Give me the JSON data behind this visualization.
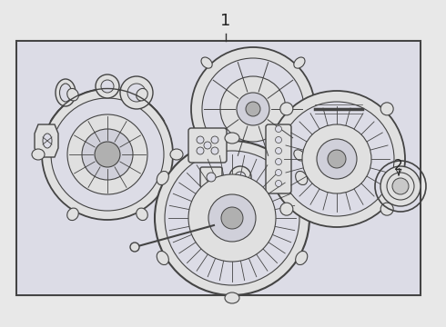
{
  "background_color": "#e8e8e8",
  "inner_bg": "#d8d8e0",
  "box_edge_color": "#555555",
  "line_color": "#444444",
  "label_1": "1",
  "label_2": "2",
  "white": "#ffffff",
  "light_gray": "#e0e0e0",
  "mid_gray": "#b0b0b0",
  "dark_gray": "#666666"
}
